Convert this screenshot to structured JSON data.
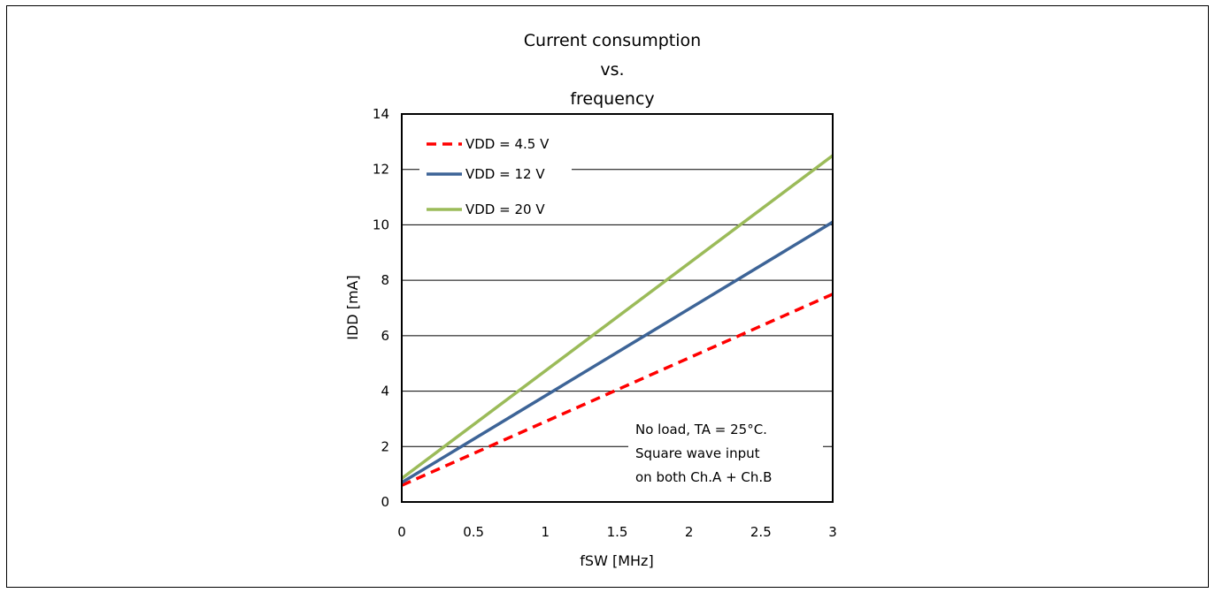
{
  "chart_data": {
    "type": "line",
    "title": [
      "Current consumption",
      "vs.",
      "frequency"
    ],
    "xlabel": "fSW [MHz]",
    "ylabel": "IDD [mA]",
    "xlim": [
      0,
      3
    ],
    "ylim": [
      0,
      14
    ],
    "xticks": [
      0,
      0.5,
      1,
      1.5,
      2,
      2.5,
      3
    ],
    "xtick_labels": [
      "0",
      "0.5",
      "1",
      "1.5",
      "2",
      "2.5",
      "3"
    ],
    "yticks": [
      0,
      2,
      4,
      6,
      8,
      10,
      12,
      14
    ],
    "ytick_labels": [
      "0",
      "2",
      "4",
      "6",
      "8",
      "10",
      "12",
      "14"
    ],
    "grid": "horizontal",
    "legend_position": "top-left",
    "series": [
      {
        "name": "VDD = 4.5 V",
        "color": "#ff0000",
        "style": "dashed",
        "x": [
          0,
          3
        ],
        "y": [
          0.6,
          7.5
        ]
      },
      {
        "name": "VDD = 12 V",
        "color": "#3d6497",
        "style": "solid",
        "x": [
          0,
          3
        ],
        "y": [
          0.7,
          10.1
        ]
      },
      {
        "name": "VDD = 20 V",
        "color": "#9bbb59",
        "style": "solid",
        "x": [
          0,
          3
        ],
        "y": [
          0.85,
          12.5
        ]
      }
    ],
    "annotation": [
      "No load, TA = 25°C.",
      "Square wave input",
      "on both Ch.A + Ch.B"
    ]
  }
}
